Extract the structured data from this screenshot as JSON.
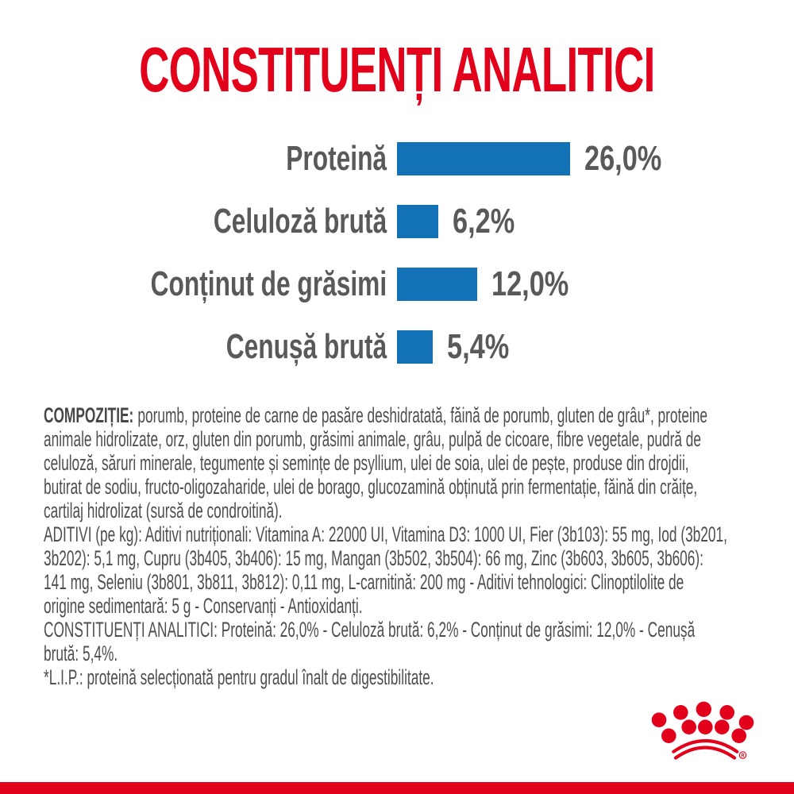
{
  "title": "CONSTITUENȚI ANALITICI",
  "colors": {
    "brand_red": "#e2001a",
    "bar_blue": "#1272b5",
    "label_gray": "#58595b",
    "body_text_gray": "#4d4e50"
  },
  "chart_data": {
    "type": "bar",
    "orientation": "horizontal",
    "title": "CONSTITUENȚI ANALITICI",
    "categories": [
      "Proteină",
      "Celuloză brută",
      "Conținut de grăsimi",
      "Cenușă brută"
    ],
    "values": [
      26.0,
      6.2,
      12.0,
      5.4
    ],
    "value_labels": [
      "26,0%",
      "6,2%",
      "12,0%",
      "5,4%"
    ],
    "unit": "%",
    "xlim": [
      0,
      30
    ],
    "grid": false,
    "legend": false,
    "bar_color": "#1272b5"
  },
  "info_text": {
    "composition_label": "COMPOZIȚIE:",
    "lines": [
      "porumb, proteine de carne de pasăre deshidratată, făină de porumb, gluten de grâu*, proteine",
      "animale hidrolizate, orz, gluten din porumb, grăsimi animale, grâu, pulpă de cicoare, fibre vegetale, pudră de",
      "celuloză, săruri minerale, tegumente și semințe de psyllium, ulei de soia, ulei de pește, produse din drojdii,",
      "butirat de sodiu, fructo-oligozaharide, ulei de borago, glucozamină obținută prin fermentație, făină din crăițe,",
      "cartilaj hidrolizat (sursă de condroitină).",
      "ADITIVI (pe kg): Aditivi nutriționali: Vitamina A: 22000 UI, Vitamina D3: 1000 UI, Fier (3b103): 55 mg, Iod (3b201,",
      "3b202): 5,1 mg, Cupru (3b405, 3b406): 15 mg, Mangan (3b502, 3b504): 66 mg, Zinc (3b603, 3b605, 3b606):",
      "141 mg, Seleniu (3b801, 3b811, 3b812): 0,11 mg, L-carnitină: 200 mg - Aditivi tehnologici: Clinoptilolite de",
      "origine sedimentară: 5 g - Conservanți - Antioxidanți.",
      "CONSTITUENȚI ANALITICI: Proteină: 26,0% - Celuloză brută: 6,2% - Conținut de grăsimi: 12,0% - Cenușă",
      "brută: 5,4%.",
      "*L.I.P.: proteină selecționată pentru gradul înalt de digestibilitate."
    ]
  },
  "logo": {
    "name": "royal-canin-crown",
    "registered_mark": "R"
  }
}
